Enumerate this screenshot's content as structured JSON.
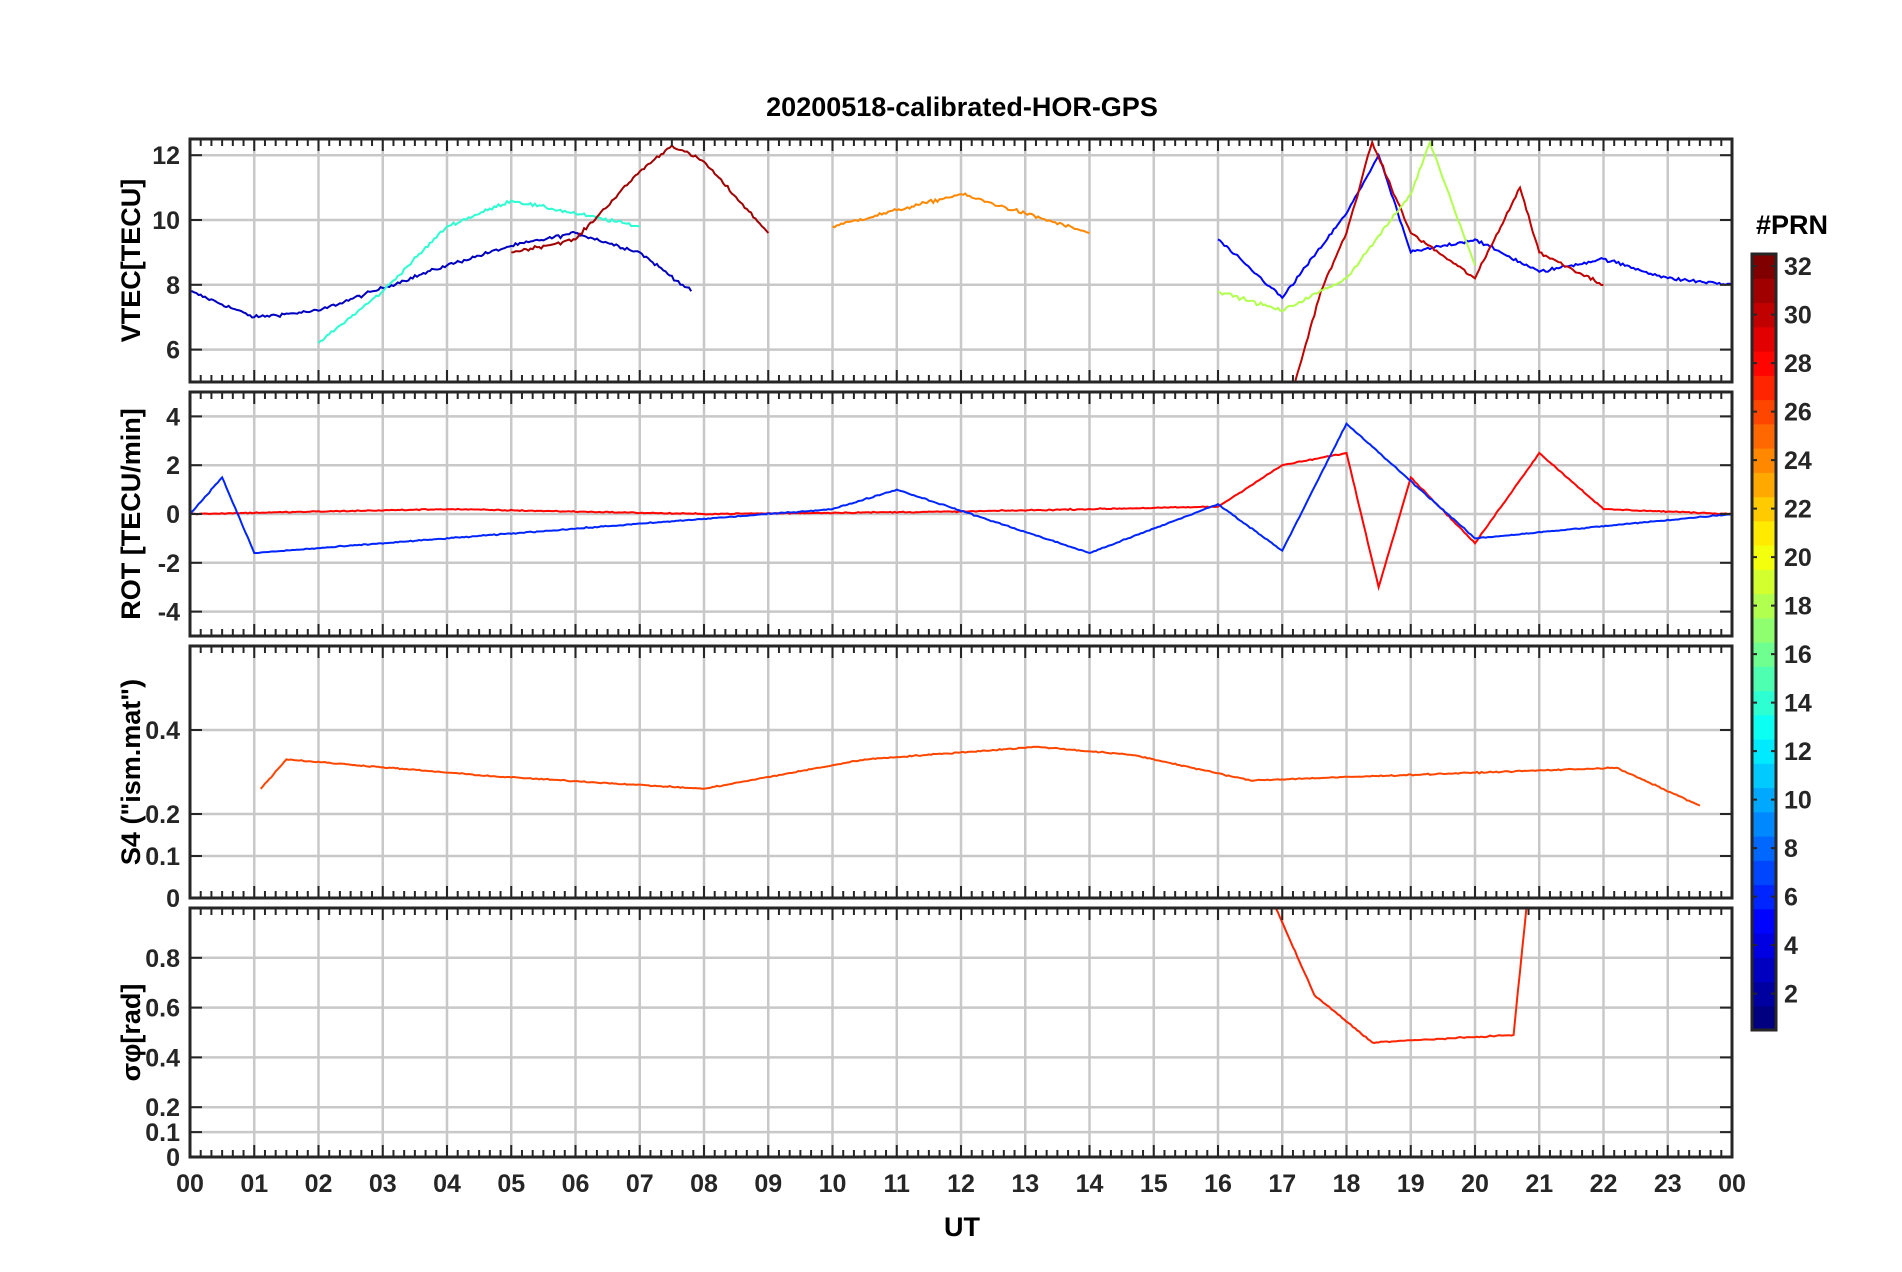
{
  "figure": {
    "title": "20200518-calibrated-HOR-GPS",
    "xlabel": "UT",
    "colorbar_label": "#PRN"
  },
  "chart_data": [
    {
      "type": "line",
      "panel": "vtec",
      "ylabel": "VTEC[TECU]",
      "ylim": [
        5,
        12.5
      ],
      "yticks": [
        6,
        8,
        10,
        12
      ],
      "xlim": [
        0,
        24
      ],
      "grid": true,
      "series": [
        {
          "prn": 3,
          "x": [
            0,
            1,
            2,
            3,
            4,
            5,
            6,
            7,
            7.8
          ],
          "y": [
            7.8,
            7.0,
            7.2,
            7.9,
            8.6,
            9.2,
            9.6,
            9.0,
            7.8
          ]
        },
        {
          "prn": 14,
          "x": [
            2,
            3,
            4,
            5,
            6,
            7
          ],
          "y": [
            6.2,
            7.8,
            9.8,
            10.6,
            10.2,
            9.8
          ]
        },
        {
          "prn": 31,
          "x": [
            5,
            6,
            7,
            7.5,
            8,
            9
          ],
          "y": [
            9.0,
            9.4,
            11.5,
            12.3,
            11.8,
            9.6
          ]
        },
        {
          "prn": 24,
          "x": [
            10,
            11,
            12,
            13,
            14
          ],
          "y": [
            9.8,
            10.3,
            10.8,
            10.2,
            9.6
          ]
        },
        {
          "prn": 5,
          "x": [
            16,
            17,
            18,
            18.5,
            19,
            20,
            21,
            22,
            23,
            24
          ],
          "y": [
            9.4,
            7.6,
            10.2,
            12.0,
            9.0,
            9.4,
            8.4,
            8.8,
            8.2,
            8.0
          ]
        },
        {
          "prn": 30,
          "x": [
            17.2,
            17.6,
            18,
            18.4,
            19,
            20,
            20.7,
            21,
            22
          ],
          "y": [
            5.0,
            7.8,
            9.6,
            12.4,
            9.6,
            8.2,
            11.0,
            9.0,
            8.0
          ]
        },
        {
          "prn": 18,
          "x": [
            16,
            17,
            18,
            19,
            19.3,
            20
          ],
          "y": [
            7.8,
            7.2,
            8.2,
            10.8,
            12.4,
            8.6
          ]
        }
      ]
    },
    {
      "type": "line",
      "panel": "rot",
      "ylabel": "ROT [TECU/min]",
      "ylim": [
        -5,
        5
      ],
      "yticks": [
        -4,
        -2,
        0,
        2,
        4
      ],
      "xlim": [
        0,
        24
      ],
      "grid": true,
      "series": [
        {
          "prn": 28,
          "x": [
            0,
            4,
            8,
            12,
            16,
            17,
            18,
            18.5,
            19,
            20,
            21,
            22,
            24
          ],
          "y": [
            0,
            0.2,
            0,
            0.1,
            0.3,
            2.0,
            2.5,
            -3.0,
            1.5,
            -1.2,
            2.5,
            0.2,
            0
          ]
        },
        {
          "prn": 6,
          "x": [
            0,
            0.5,
            1,
            10,
            11,
            14,
            16,
            17,
            18,
            20,
            24
          ],
          "y": [
            0,
            1.5,
            -1.6,
            0.2,
            1.0,
            -1.6,
            0.4,
            -1.5,
            3.7,
            -1.0,
            0
          ]
        }
      ]
    },
    {
      "type": "line",
      "panel": "s4",
      "ylabel": "S4 (\"ism.mat\")",
      "ylim": [
        0,
        0.6
      ],
      "yticks": [
        0,
        0.1,
        0.2,
        0.4
      ],
      "xlim": [
        0,
        24
      ],
      "grid": true,
      "series": [
        {
          "prn": 26,
          "x": [
            1.1,
            1.5,
            4.7,
            8,
            10.5,
            13.2,
            14.7,
            16.5,
            22.2,
            23.5
          ],
          "y": [
            0.26,
            0.33,
            0.29,
            0.26,
            0.33,
            0.36,
            0.34,
            0.28,
            0.31,
            0.22
          ]
        }
      ]
    },
    {
      "type": "line",
      "panel": "sigma_phi",
      "ylabel": "σφ[rad]",
      "ylim": [
        0,
        1
      ],
      "yticks": [
        0,
        0.1,
        0.2,
        0.4,
        0.6,
        0.8
      ],
      "xlim": [
        0,
        24
      ],
      "grid": true,
      "series": [
        {
          "prn": 27,
          "x": [
            16.9,
            17.5,
            18.4,
            20.6,
            20.8
          ],
          "y": [
            1.0,
            0.65,
            0.46,
            0.49,
            1.0
          ]
        }
      ]
    }
  ],
  "xaxis": {
    "ticks": [
      "00",
      "01",
      "02",
      "03",
      "04",
      "05",
      "06",
      "07",
      "08",
      "09",
      "10",
      "11",
      "12",
      "13",
      "14",
      "15",
      "16",
      "17",
      "18",
      "19",
      "20",
      "21",
      "22",
      "23",
      "00"
    ]
  },
  "colorbar": {
    "min": 1,
    "max": 32,
    "ticks": [
      2,
      4,
      6,
      8,
      10,
      12,
      14,
      16,
      18,
      20,
      22,
      24,
      26,
      28,
      30,
      32
    ],
    "colormap": "jet"
  }
}
